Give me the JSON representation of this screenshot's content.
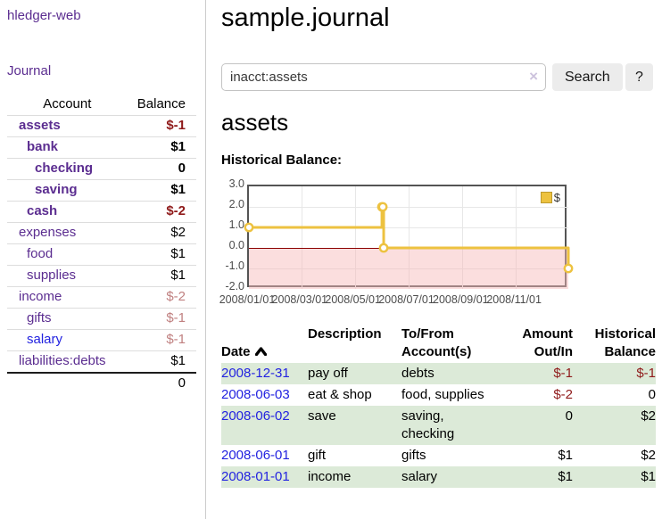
{
  "app": {
    "brand": "hledger-web"
  },
  "sidebar": {
    "journal_link": "Journal",
    "table": {
      "account_header": "Account",
      "balance_header": "Balance",
      "accounts": [
        {
          "name": "assets",
          "balance": "$-1"
        },
        {
          "name": "bank",
          "balance": "$1"
        },
        {
          "name": "checking",
          "balance": "0"
        },
        {
          "name": "saving",
          "balance": "$1"
        },
        {
          "name": "cash",
          "balance": "$-2"
        },
        {
          "name": "expenses",
          "balance": "$2"
        },
        {
          "name": "food",
          "balance": "$1"
        },
        {
          "name": "supplies",
          "balance": "$1"
        },
        {
          "name": "income",
          "balance": "$-2"
        },
        {
          "name": "gifts",
          "balance": "$-1"
        },
        {
          "name": "salary",
          "balance": "$-1"
        },
        {
          "name": "liabilities:debts",
          "balance": "$1"
        }
      ],
      "total": "0"
    }
  },
  "header": {
    "title": "sample.journal"
  },
  "search": {
    "value": "inacct:assets",
    "clear_icon": "×",
    "button_label": "Search",
    "help_label": "?"
  },
  "account_page": {
    "heading": "assets",
    "chart_title": "Historical Balance:"
  },
  "chart_data": {
    "type": "line",
    "title": "Historical Balance",
    "steps": true,
    "legend_position": "top-right",
    "grid": true,
    "line_color": "#edc240",
    "zero_line_color": "#8b0000",
    "negative_region": true,
    "ylim": [
      -2,
      3
    ],
    "y_ticks": [
      3.0,
      2.0,
      1.0,
      0.0,
      -1.0,
      -2.0
    ],
    "x_ticks": [
      {
        "label": "2008/01/01",
        "day": 0
      },
      {
        "label": "2008/03/01",
        "day": 60
      },
      {
        "label": "2008/05/01",
        "day": 121
      },
      {
        "label": "2008/07/01",
        "day": 182
      },
      {
        "label": "2008/09/01",
        "day": 244
      },
      {
        "label": "2008/11/01",
        "day": 305
      }
    ],
    "x_range_days": 365,
    "series": [
      {
        "name": "$",
        "color": "#edc240",
        "points": [
          {
            "date": "2008-01-01",
            "day": 0,
            "value": 1
          },
          {
            "date": "2008-06-01",
            "day": 152,
            "value": 2
          },
          {
            "date": "2008-06-02",
            "day": 153,
            "value": 2
          },
          {
            "date": "2008-06-03",
            "day": 154,
            "value": 0
          },
          {
            "date": "2008-12-31",
            "day": 365,
            "value": -1
          }
        ]
      }
    ]
  },
  "register": {
    "columns": {
      "date": "Date",
      "description": "Description",
      "accounts": "To/From\nAccount(s)",
      "amount": "Amount\nOut/In",
      "balance": "Historical\nBalance"
    },
    "rows": [
      {
        "date": "2008-12-31",
        "description": "pay off",
        "accounts": "debts",
        "amount": "$-1",
        "balance": "$-1"
      },
      {
        "date": "2008-06-03",
        "description": "eat & shop",
        "accounts": "food, supplies",
        "amount": "$-2",
        "balance": "0"
      },
      {
        "date": "2008-06-02",
        "description": "save",
        "accounts": "saving,\nchecking",
        "amount": "0",
        "balance": "$2"
      },
      {
        "date": "2008-06-01",
        "description": "gift",
        "accounts": "gifts",
        "amount": "$1",
        "balance": "$2"
      },
      {
        "date": "2008-01-01",
        "description": "income",
        "accounts": "salary",
        "amount": "$1",
        "balance": "$1"
      }
    ]
  }
}
